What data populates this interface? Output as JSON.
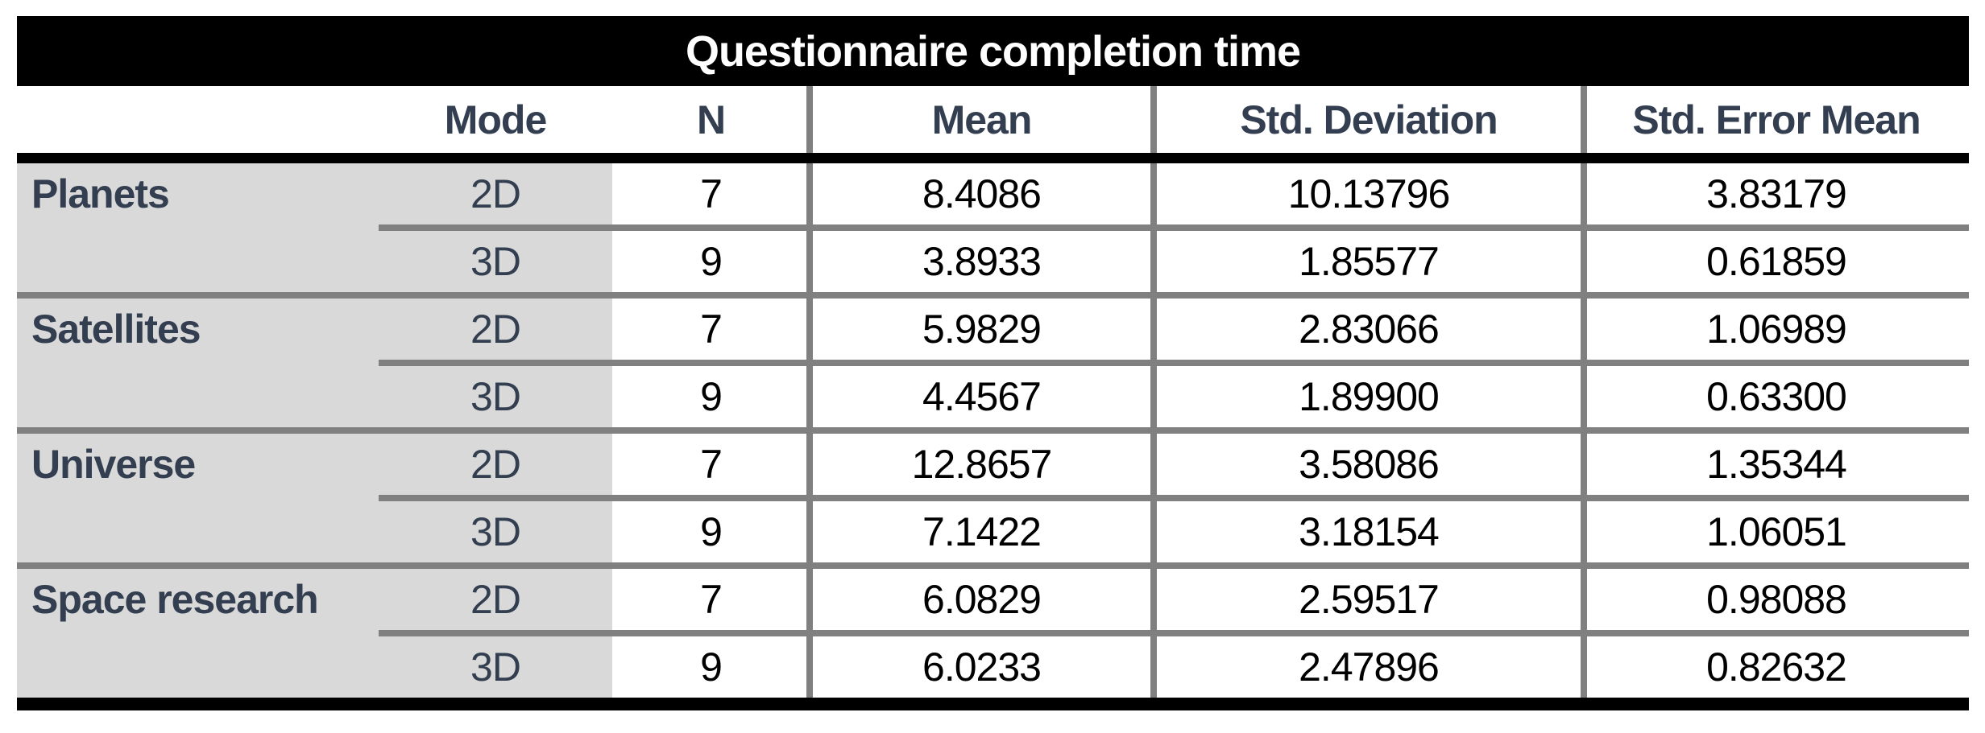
{
  "title": "Questionnaire completion time",
  "columns": {
    "mode": "Mode",
    "n": "N",
    "mean": "Mean",
    "std_deviation": "Std. Deviation",
    "std_error_mean": "Std. Error Mean"
  },
  "groups": [
    {
      "label": "Planets",
      "rows": [
        {
          "mode": "2D",
          "n": "7",
          "mean": "8.4086",
          "std_deviation": "10.13796",
          "std_error_mean": "3.83179"
        },
        {
          "mode": "3D",
          "n": "9",
          "mean": "3.8933",
          "std_deviation": "1.85577",
          "std_error_mean": "0.61859"
        }
      ]
    },
    {
      "label": "Satellites",
      "rows": [
        {
          "mode": "2D",
          "n": "7",
          "mean": "5.9829",
          "std_deviation": "2.83066",
          "std_error_mean": "1.06989"
        },
        {
          "mode": "3D",
          "n": "9",
          "mean": "4.4567",
          "std_deviation": "1.89900",
          "std_error_mean": "0.63300"
        }
      ]
    },
    {
      "label": "Universe",
      "rows": [
        {
          "mode": "2D",
          "n": "7",
          "mean": "12.8657",
          "std_deviation": "3.58086",
          "std_error_mean": "1.35344"
        },
        {
          "mode": "3D",
          "n": "9",
          "mean": "7.1422",
          "std_deviation": "3.18154",
          "std_error_mean": "1.06051"
        }
      ]
    },
    {
      "label": "Space research",
      "rows": [
        {
          "mode": "2D",
          "n": "7",
          "mean": "6.0829",
          "std_deviation": "2.59517",
          "std_error_mean": "0.98088"
        },
        {
          "mode": "3D",
          "n": "9",
          "mean": "6.0233",
          "std_deviation": "2.47896",
          "std_error_mean": "0.82632"
        }
      ]
    }
  ],
  "chart_data": {
    "type": "table",
    "title": "Questionnaire completion time",
    "columns": [
      "",
      "Mode",
      "N",
      "Mean",
      "Std. Deviation",
      "Std. Error Mean"
    ],
    "rows": [
      [
        "Planets",
        "2D",
        7,
        8.4086,
        10.13796,
        3.83179
      ],
      [
        "Planets",
        "3D",
        9,
        3.8933,
        1.85577,
        0.61859
      ],
      [
        "Satellites",
        "2D",
        7,
        5.9829,
        2.83066,
        1.06989
      ],
      [
        "Satellites",
        "3D",
        9,
        4.4567,
        1.899,
        0.633
      ],
      [
        "Universe",
        "2D",
        7,
        12.8657,
        3.58086,
        1.35344
      ],
      [
        "Universe",
        "3D",
        9,
        7.1422,
        3.18154,
        1.06051
      ],
      [
        "Space research",
        "2D",
        7,
        6.0829,
        2.59517,
        0.98088
      ],
      [
        "Space research",
        "3D",
        9,
        6.0233,
        2.47896,
        0.82632
      ]
    ]
  },
  "colors": {
    "title_bar_bg": "#000000",
    "title_text": "#ffffff",
    "header_text": "#333F50",
    "label_text": "#333F50",
    "value_text": "#000000",
    "shaded_column_bg": "#D9D9D9",
    "grid_line": "#808080",
    "heavy_rule": "#000000"
  }
}
